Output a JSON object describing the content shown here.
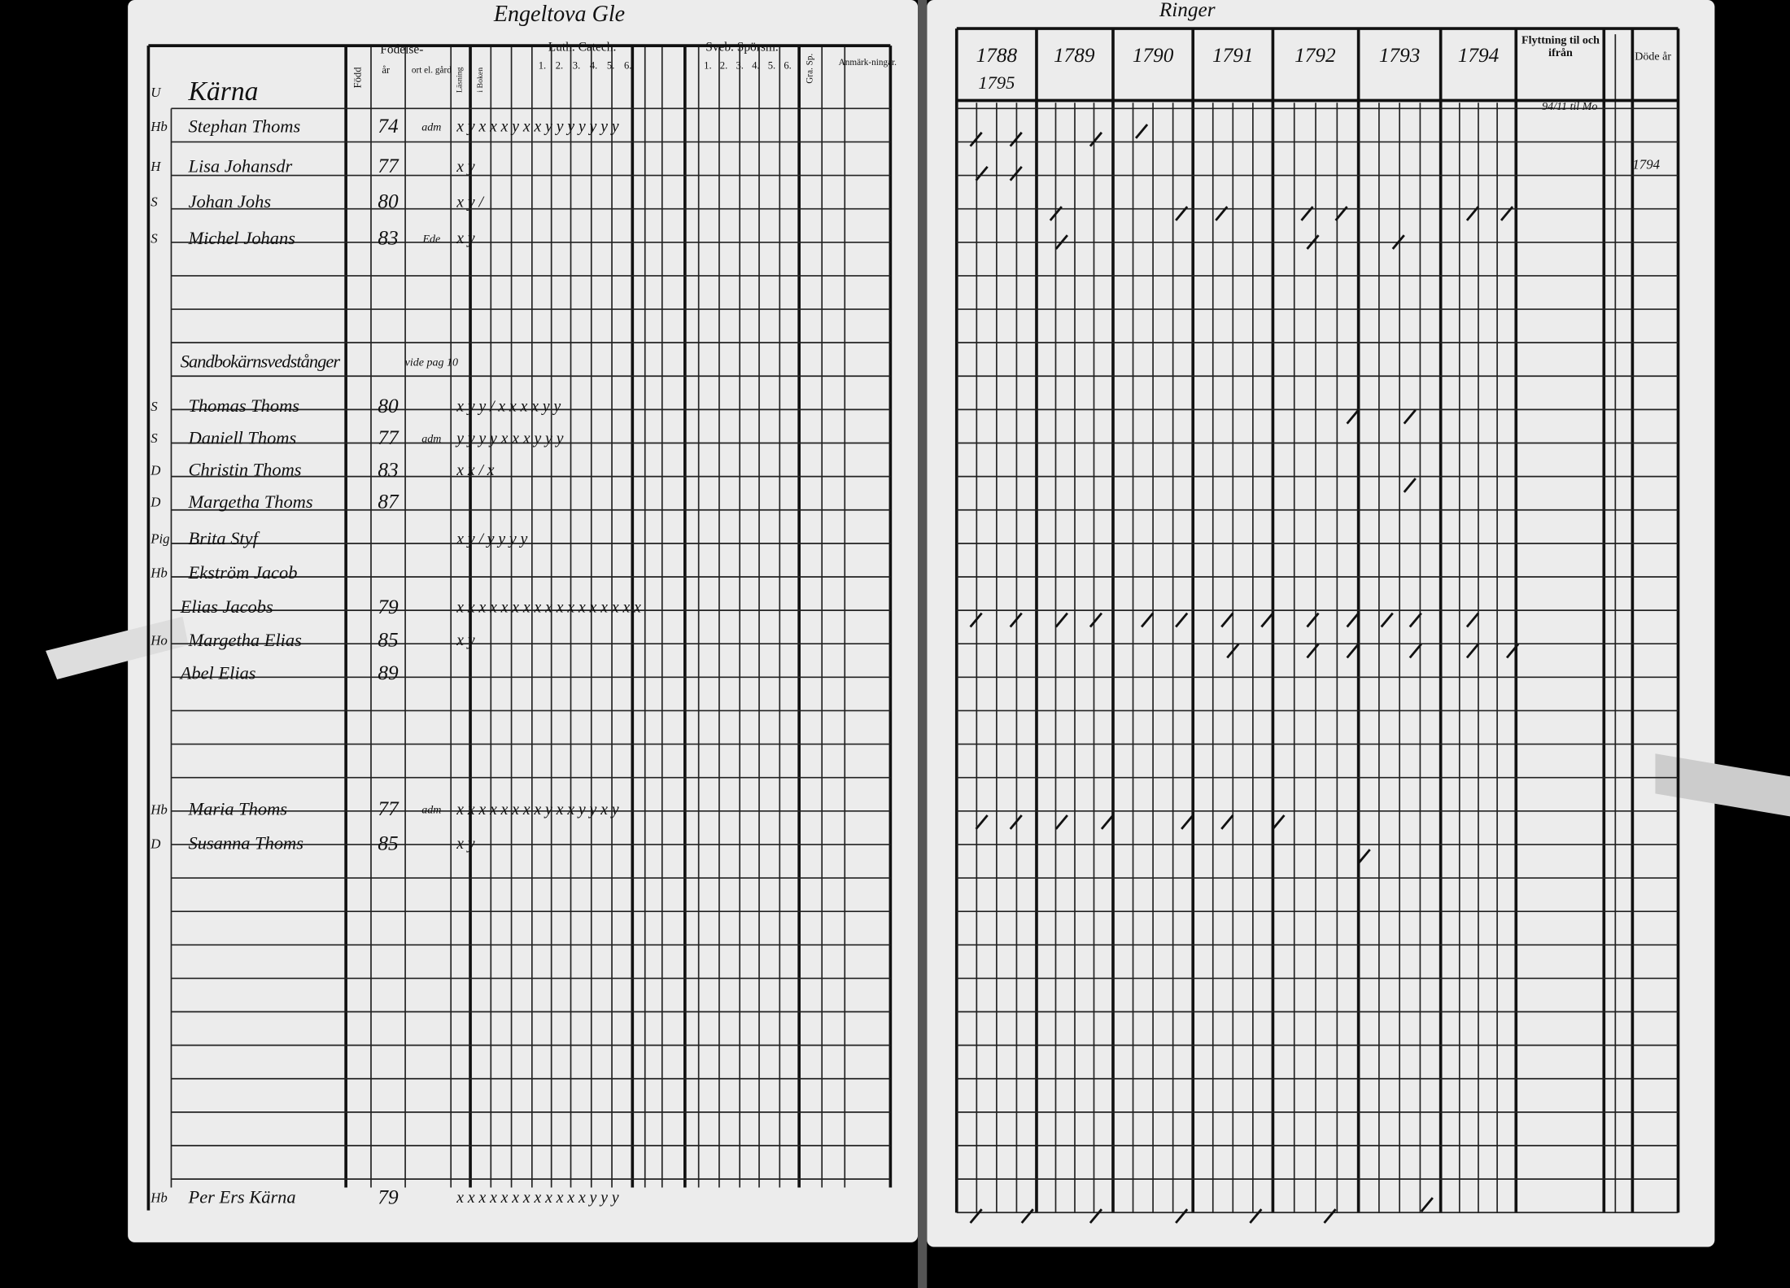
{
  "left_page": {
    "header": "Engeltova Gle",
    "columns": {
      "birth": "Född",
      "birth_group": "Födelse-",
      "year": "år",
      "place": "ort el. gård",
      "reading": "Läsning",
      "in_book": "i Boken",
      "luth_catech": "Luth. Catech.",
      "luth_numbers": [
        "1.",
        "2.",
        "3.",
        "4.",
        "5.",
        "6."
      ],
      "sveb": "Sveb. Spörsm.",
      "sveb_numbers": [
        "1.",
        "2.",
        "3.",
        "4.",
        "5.",
        "6."
      ],
      "grace": "Gra. Sp.",
      "notes": "Anmärk-ningar."
    },
    "rows": [
      {
        "role": "U",
        "name": "Kärna"
      },
      {
        "role": "Hb",
        "name": "Stephan Thoms",
        "year": "74",
        "place": "adm",
        "marks": "x y x x x y x x y y   y y y y y"
      },
      {
        "role": "H",
        "name": "Lisa Johansdr",
        "year": "77",
        "marks": "x y"
      },
      {
        "role": "S",
        "name": "Johan Johs",
        "year": "80",
        "marks": "x y /"
      },
      {
        "role": "S",
        "name": "Michel Johans",
        "year": "83",
        "place": "Ede",
        "marks": "x y"
      },
      {
        "name": "Sandbokärnsvedstånger",
        "place": "vide pag 10"
      },
      {
        "role": "S",
        "name": "Thomas Thoms",
        "year": "80",
        "marks": "x y y / x x x x y y"
      },
      {
        "role": "S",
        "name": "Daniell Thoms",
        "year": "77",
        "place": "adm",
        "marks": "y y y y x x x y y y"
      },
      {
        "role": "D",
        "name": "Christin Thoms",
        "year": "83",
        "marks": "x x / x"
      },
      {
        "role": "D",
        "name": "Margetha Thoms",
        "year": "87"
      },
      {
        "role": "Pig",
        "name": "Brita Styf",
        "marks": "x y / y y y y"
      },
      {
        "role": "Hb",
        "name": "Ekström Jacob"
      },
      {
        "name": "Elias Jacobs",
        "year": "79",
        "marks": "x x x x x x x x   x x x x x x x x x"
      },
      {
        "role": "Ho",
        "name": "Margetha Elias",
        "year": "85",
        "marks": "x y"
      },
      {
        "name": "Abel Elias",
        "year": "89"
      },
      {
        "role": "Hb",
        "name": "Maria Thoms",
        "year": "77",
        "place": "adm",
        "marks": "x x x x x x x x y x   x y y x y"
      },
      {
        "role": "D",
        "name": "Susanna Thoms",
        "year": "85",
        "marks": "x y"
      },
      {
        "role": "Hb",
        "name": "Per Ers Kärna",
        "year": "79",
        "marks": "x x x x x x x x x x x x y y y"
      }
    ]
  },
  "right_page": {
    "header": "Ringer",
    "years": [
      "1788",
      "1789",
      "1790",
      "1791",
      "1792",
      "1793",
      "1794"
    ],
    "extra_year": "1795",
    "moving": "Flyttning til och ifrån",
    "moving_note": "94/11 til Mo",
    "deaths": "Döde år",
    "death_note": "1794"
  }
}
